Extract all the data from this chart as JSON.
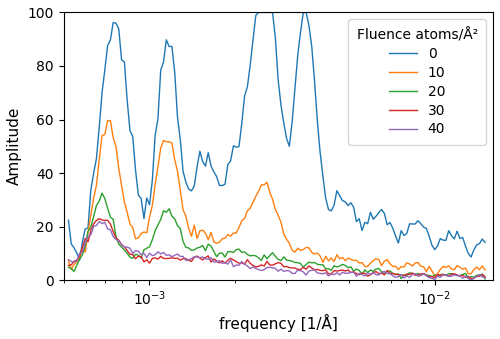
{
  "title": "",
  "xlabel": "frequency [1/Å]",
  "ylabel": "Amplitude",
  "ylim": [
    0,
    100
  ],
  "xlim": [
    0.0005,
    0.016
  ],
  "legend_title": "Fluence atoms/Å²",
  "legend_labels": [
    "0",
    "10",
    "20",
    "30",
    "40"
  ],
  "colors": [
    "#1f77b4",
    "#ff7f0e",
    "#2ca02c",
    "#d62728",
    "#9467bd"
  ],
  "figsize": [
    5.0,
    3.39
  ],
  "dpi": 100
}
